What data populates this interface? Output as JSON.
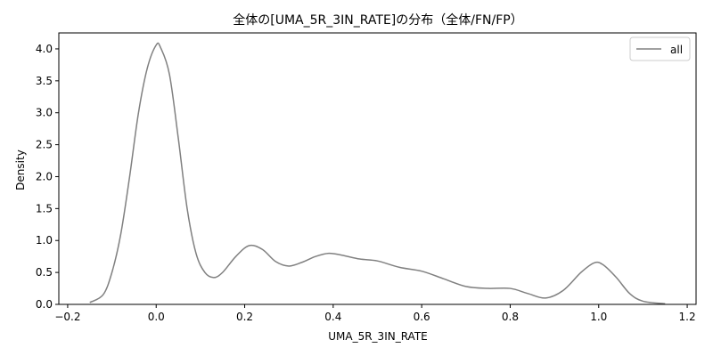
{
  "chart_data": {
    "type": "line",
    "title": "全体の[UMA_5R_3IN_RATE]の分布（全体/FN/FP）",
    "xlabel": "UMA_5R_3IN_RATE",
    "ylabel": "Density",
    "xlim": [
      -0.22,
      1.22
    ],
    "ylim": [
      0.0,
      4.25
    ],
    "xticks": [
      -0.2,
      0.0,
      0.2,
      0.4,
      0.6,
      0.8,
      1.0,
      1.2
    ],
    "xtick_labels": [
      "−0.2",
      "0.0",
      "0.2",
      "0.4",
      "0.6",
      "0.8",
      "1.0",
      "1.2"
    ],
    "yticks": [
      0.0,
      0.5,
      1.0,
      1.5,
      2.0,
      2.5,
      3.0,
      3.5,
      4.0
    ],
    "ytick_labels": [
      "0.0",
      "0.5",
      "1.0",
      "1.5",
      "2.0",
      "2.5",
      "3.0",
      "3.5",
      "4.0"
    ],
    "legend_position": "top-right",
    "series": [
      {
        "name": "all",
        "color": "#808080",
        "x": [
          -0.15,
          -0.12,
          -0.1,
          -0.08,
          -0.06,
          -0.04,
          -0.02,
          0.0,
          0.01,
          0.03,
          0.05,
          0.07,
          0.09,
          0.11,
          0.13,
          0.15,
          0.18,
          0.21,
          0.24,
          0.27,
          0.3,
          0.33,
          0.36,
          0.39,
          0.42,
          0.46,
          0.5,
          0.55,
          0.6,
          0.65,
          0.7,
          0.75,
          0.8,
          0.84,
          0.88,
          0.92,
          0.96,
          0.99,
          1.01,
          1.04,
          1.07,
          1.1,
          1.15
        ],
        "values": [
          0.03,
          0.15,
          0.5,
          1.1,
          2.0,
          3.0,
          3.7,
          4.06,
          4.02,
          3.6,
          2.6,
          1.5,
          0.8,
          0.5,
          0.42,
          0.5,
          0.75,
          0.92,
          0.86,
          0.67,
          0.6,
          0.66,
          0.75,
          0.8,
          0.77,
          0.71,
          0.68,
          0.58,
          0.52,
          0.4,
          0.28,
          0.25,
          0.25,
          0.17,
          0.1,
          0.22,
          0.5,
          0.65,
          0.62,
          0.42,
          0.17,
          0.05,
          0.01
        ]
      }
    ]
  }
}
